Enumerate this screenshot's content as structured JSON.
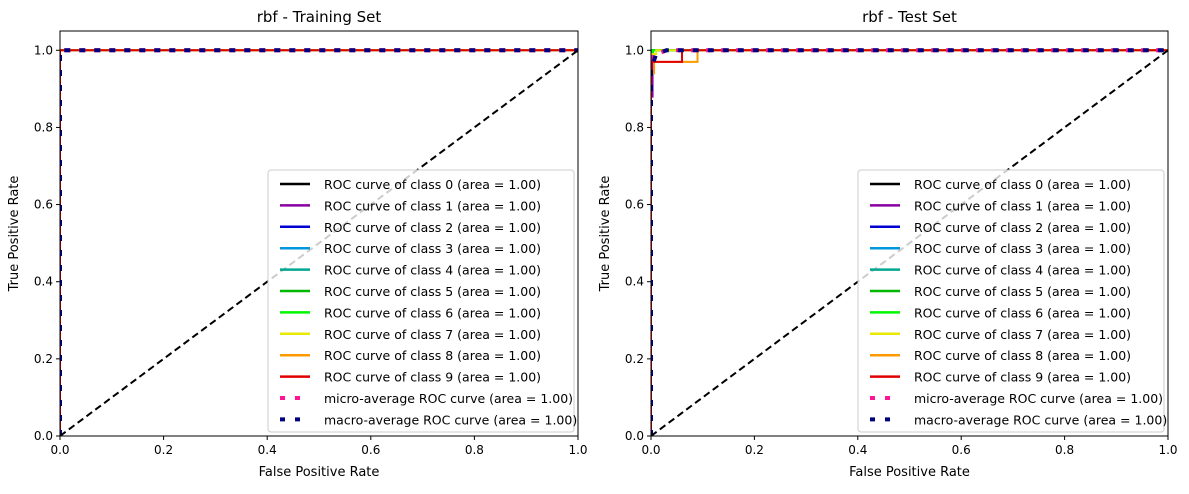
{
  "chart_data": [
    {
      "type": "line",
      "title": "rbf - Training Set",
      "xlabel": "False Positive Rate",
      "ylabel": "True Positive Rate",
      "xlim": [
        0,
        1
      ],
      "ylim": [
        0,
        1.05
      ],
      "xticks": [
        "0.0",
        "0.2",
        "0.4",
        "0.6",
        "0.8",
        "1.0"
      ],
      "yticks": [
        "0.0",
        "0.2",
        "0.4",
        "0.6",
        "0.8",
        "1.0"
      ],
      "legend_position": "lower-right",
      "series": [
        {
          "name": "ROC curve of class 0 (area = 1.00)",
          "color": "#000000",
          "style": "solid",
          "x": [
            0,
            0,
            1
          ],
          "y": [
            0,
            1,
            1
          ]
        },
        {
          "name": "ROC curve of class 1 (area = 1.00)",
          "color": "#8a00a0",
          "style": "solid",
          "x": [
            0,
            0,
            1
          ],
          "y": [
            0,
            1,
            1
          ]
        },
        {
          "name": "ROC curve of class 2 (area = 1.00)",
          "color": "#0000d0",
          "style": "solid",
          "x": [
            0,
            0,
            1
          ],
          "y": [
            0,
            1,
            1
          ]
        },
        {
          "name": "ROC curve of class 3 (area = 1.00)",
          "color": "#0096dc",
          "style": "solid",
          "x": [
            0,
            0,
            1
          ],
          "y": [
            0,
            1,
            1
          ]
        },
        {
          "name": "ROC curve of class 4 (area = 1.00)",
          "color": "#00a890",
          "style": "solid",
          "x": [
            0,
            0,
            1
          ],
          "y": [
            0,
            1,
            1
          ]
        },
        {
          "name": "ROC curve of class 5 (area = 1.00)",
          "color": "#00b800",
          "style": "solid",
          "x": [
            0,
            0,
            1
          ],
          "y": [
            0,
            1,
            1
          ]
        },
        {
          "name": "ROC curve of class 6 (area = 1.00)",
          "color": "#00f800",
          "style": "solid",
          "x": [
            0,
            0,
            1
          ],
          "y": [
            0,
            1,
            1
          ]
        },
        {
          "name": "ROC curve of class 7 (area = 1.00)",
          "color": "#e8e800",
          "style": "solid",
          "x": [
            0,
            0,
            1
          ],
          "y": [
            0,
            1,
            1
          ]
        },
        {
          "name": "ROC curve of class 8 (area = 1.00)",
          "color": "#ff9900",
          "style": "solid",
          "x": [
            0,
            0,
            1
          ],
          "y": [
            0,
            1,
            1
          ]
        },
        {
          "name": "ROC curve of class 9 (area = 1.00)",
          "color": "#e00000",
          "style": "solid",
          "x": [
            0,
            0,
            1
          ],
          "y": [
            0,
            1,
            1
          ]
        },
        {
          "name": "micro-average ROC curve (area = 1.00)",
          "color": "#ff1493",
          "style": "dotted",
          "x": [
            0,
            0,
            1
          ],
          "y": [
            0,
            1,
            1
          ]
        },
        {
          "name": "macro-average ROC curve (area = 1.00)",
          "color": "#000080",
          "style": "dotted",
          "x": [
            0,
            0,
            1
          ],
          "y": [
            0,
            1,
            1
          ]
        }
      ]
    },
    {
      "type": "line",
      "title": "rbf - Test Set",
      "xlabel": "False Positive Rate",
      "ylabel": "True Positive Rate",
      "xlim": [
        0,
        1
      ],
      "ylim": [
        0,
        1.05
      ],
      "xticks": [
        "0.0",
        "0.2",
        "0.4",
        "0.6",
        "0.8",
        "1.0"
      ],
      "yticks": [
        "0.0",
        "0.2",
        "0.4",
        "0.6",
        "0.8",
        "1.0"
      ],
      "legend_position": "lower-right",
      "series": [
        {
          "name": "ROC curve of class 0 (area = 1.00)",
          "color": "#000000",
          "style": "solid",
          "x": [
            0,
            0,
            1
          ],
          "y": [
            0,
            1,
            1
          ]
        },
        {
          "name": "ROC curve of class 1 (area = 1.00)",
          "color": "#8a00a0",
          "style": "solid",
          "x": [
            0,
            0,
            0.003,
            0.003,
            1
          ],
          "y": [
            0,
            0.88,
            0.88,
            1,
            1
          ]
        },
        {
          "name": "ROC curve of class 2 (area = 1.00)",
          "color": "#0000d0",
          "style": "solid",
          "x": [
            0,
            0,
            0.002,
            0.002,
            1
          ],
          "y": [
            0,
            0.97,
            0.97,
            1,
            1
          ]
        },
        {
          "name": "ROC curve of class 3 (area = 1.00)",
          "color": "#0096dc",
          "style": "solid",
          "x": [
            0,
            0,
            1
          ],
          "y": [
            0,
            1,
            1
          ]
        },
        {
          "name": "ROC curve of class 4 (area = 1.00)",
          "color": "#00a890",
          "style": "solid",
          "x": [
            0,
            0,
            1
          ],
          "y": [
            0,
            1,
            1
          ]
        },
        {
          "name": "ROC curve of class 5 (area = 1.00)",
          "color": "#00b800",
          "style": "solid",
          "x": [
            0,
            0,
            0.003,
            0.003,
            1
          ],
          "y": [
            0,
            0.99,
            0.99,
            1,
            1
          ]
        },
        {
          "name": "ROC curve of class 6 (area = 1.00)",
          "color": "#00f800",
          "style": "solid",
          "x": [
            0,
            0,
            0.004,
            0.004,
            1
          ],
          "y": [
            0,
            0.99,
            0.99,
            1,
            1
          ]
        },
        {
          "name": "ROC curve of class 7 (area = 1.00)",
          "color": "#e8e800",
          "style": "solid",
          "x": [
            0,
            0,
            0.01,
            0.01,
            1
          ],
          "y": [
            0,
            0.99,
            0.99,
            1,
            1
          ]
        },
        {
          "name": "ROC curve of class 8 (area = 1.00)",
          "color": "#ff9900",
          "style": "solid",
          "x": [
            0,
            0,
            0.006,
            0.006,
            0.09,
            0.09,
            1
          ],
          "y": [
            0,
            0.94,
            0.94,
            0.97,
            0.97,
            1,
            1
          ]
        },
        {
          "name": "ROC curve of class 9 (area = 1.00)",
          "color": "#e00000",
          "style": "solid",
          "x": [
            0,
            0,
            0.06,
            0.06,
            1
          ],
          "y": [
            0,
            0.97,
            0.97,
            1,
            1
          ]
        },
        {
          "name": "micro-average ROC curve (area = 1.00)",
          "color": "#ff1493",
          "style": "dotted",
          "x": [
            0,
            0,
            0.01,
            0.03,
            1
          ],
          "y": [
            0,
            0.98,
            0.99,
            1,
            1
          ]
        },
        {
          "name": "macro-average ROC curve (area = 1.00)",
          "color": "#000080",
          "style": "dotted",
          "x": [
            0,
            0,
            0.01,
            0.03,
            1
          ],
          "y": [
            0,
            0.95,
            0.99,
            1,
            1
          ]
        }
      ]
    }
  ]
}
